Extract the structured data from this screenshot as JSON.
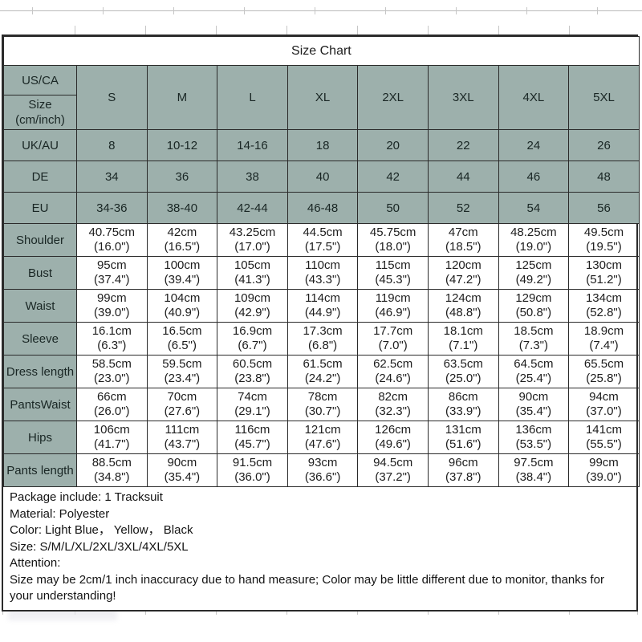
{
  "title": "Size Chart",
  "table": {
    "corner_top": "US/CA",
    "corner_bottom_line1": "Size",
    "corner_bottom_line2": "(cm/inch)",
    "sizes": [
      "S",
      "M",
      "L",
      "XL",
      "2XL",
      "3XL",
      "4XL",
      "5XL"
    ],
    "conversion_rows": [
      {
        "label": "UK/AU",
        "values": [
          "8",
          "10-12",
          "14-16",
          "18",
          "20",
          "22",
          "24",
          "26"
        ]
      },
      {
        "label": "DE",
        "values": [
          "34",
          "36",
          "38",
          "40",
          "42",
          "44",
          "46",
          "48"
        ],
        "comment_marker_col": 1
      },
      {
        "label": "EU",
        "values": [
          "34-36",
          "38-40",
          "42-44",
          "46-48",
          "50",
          "52",
          "54",
          "56"
        ]
      }
    ],
    "measurement_rows": [
      {
        "label": "Shoulder",
        "cm": [
          "40.75cm",
          "42cm",
          "43.25cm",
          "44.5cm",
          "45.75cm",
          "47cm",
          "48.25cm",
          "49.5cm"
        ],
        "inch": [
          "(16.0\")",
          "(16.5\")",
          "(17.0\")",
          "(17.5\")",
          "(18.0\")",
          "(18.5\")",
          "(19.0\")",
          "(19.5\")"
        ]
      },
      {
        "label": "Bust",
        "cm": [
          "95cm",
          "100cm",
          "105cm",
          "110cm",
          "115cm",
          "120cm",
          "125cm",
          "130cm"
        ],
        "inch": [
          "(37.4\")",
          "(39.4\")",
          "(41.3\")",
          "(43.3\")",
          "(45.3\")",
          "(47.2\")",
          "(49.2\")",
          "(51.2\")"
        ]
      },
      {
        "label": "Waist",
        "cm": [
          "99cm",
          "104cm",
          "109cm",
          "114cm",
          "119cm",
          "124cm",
          "129cm",
          "134cm"
        ],
        "inch": [
          "(39.0\")",
          "(40.9\")",
          "(42.9\")",
          "(44.9\")",
          "(46.9\")",
          "(48.8\")",
          "(50.8\")",
          "(52.8\")"
        ]
      },
      {
        "label": "Sleeve",
        "cm": [
          "16.1cm",
          "16.5cm",
          "16.9cm",
          "17.3cm",
          "17.7cm",
          "18.1cm",
          "18.5cm",
          "18.9cm"
        ],
        "inch": [
          "(6.3\")",
          "(6.5\")",
          "(6.7\")",
          "(6.8\")",
          "(7.0\")",
          "(7.1\")",
          "(7.3\")",
          "(7.4\")"
        ]
      },
      {
        "label": "Dress length",
        "cm": [
          "58.5cm",
          "59.5cm",
          "60.5cm",
          "61.5cm",
          "62.5cm",
          "63.5cm",
          "64.5cm",
          "65.5cm"
        ],
        "inch": [
          "(23.0\")",
          "(23.4\")",
          "(23.8\")",
          "(24.2\")",
          "(24.6\")",
          "(25.0\")",
          "(25.4\")",
          "(25.8\")"
        ]
      },
      {
        "label": "PantsWaist",
        "cm": [
          "66cm",
          "70cm",
          "74cm",
          "78cm",
          "82cm",
          "86cm",
          "90cm",
          "94cm"
        ],
        "inch": [
          "(26.0\")",
          "(27.6\")",
          "(29.1\")",
          "(30.7\")",
          "(32.3\")",
          "(33.9\")",
          "(35.4\")",
          "(37.0\")"
        ]
      },
      {
        "label": "Hips",
        "cm": [
          "106cm",
          "111cm",
          "116cm",
          "121cm",
          "126cm",
          "131cm",
          "136cm",
          "141cm"
        ],
        "inch": [
          "(41.7\")",
          "(43.7\")",
          "(45.7\")",
          "(47.6\")",
          "(49.6\")",
          "(51.6\")",
          "(53.5\")",
          "(55.5\")"
        ]
      },
      {
        "label": "Pants length",
        "cm": [
          "88.5cm",
          "90cm",
          "91.5cm",
          "93cm",
          "94.5cm",
          "96cm",
          "97.5cm",
          "99cm"
        ],
        "inch": [
          "(34.8\")",
          "(35.4\")",
          "(36.0\")",
          "(36.6\")",
          "(37.2\")",
          "(37.8\")",
          "(38.4\")",
          "(39.0\")"
        ]
      }
    ]
  },
  "notes": {
    "lines": [
      "Package include: 1 Tracksuit",
      "Material:  Polyester",
      "Color:   Light Blue， Yellow， Black",
      "Size: S/M/L/XL/2XL/3XL/4XL/5XL",
      "Attention:",
      "Size may be 2cm/1 inch inaccuracy due to hand measure; Color may be little different due to monitor, thanks for your understanding!"
    ]
  },
  "colors": {
    "header_bg": "#9db0ac",
    "border": "#2b2b2b",
    "comment_marker_green": "#1d9b1d"
  }
}
